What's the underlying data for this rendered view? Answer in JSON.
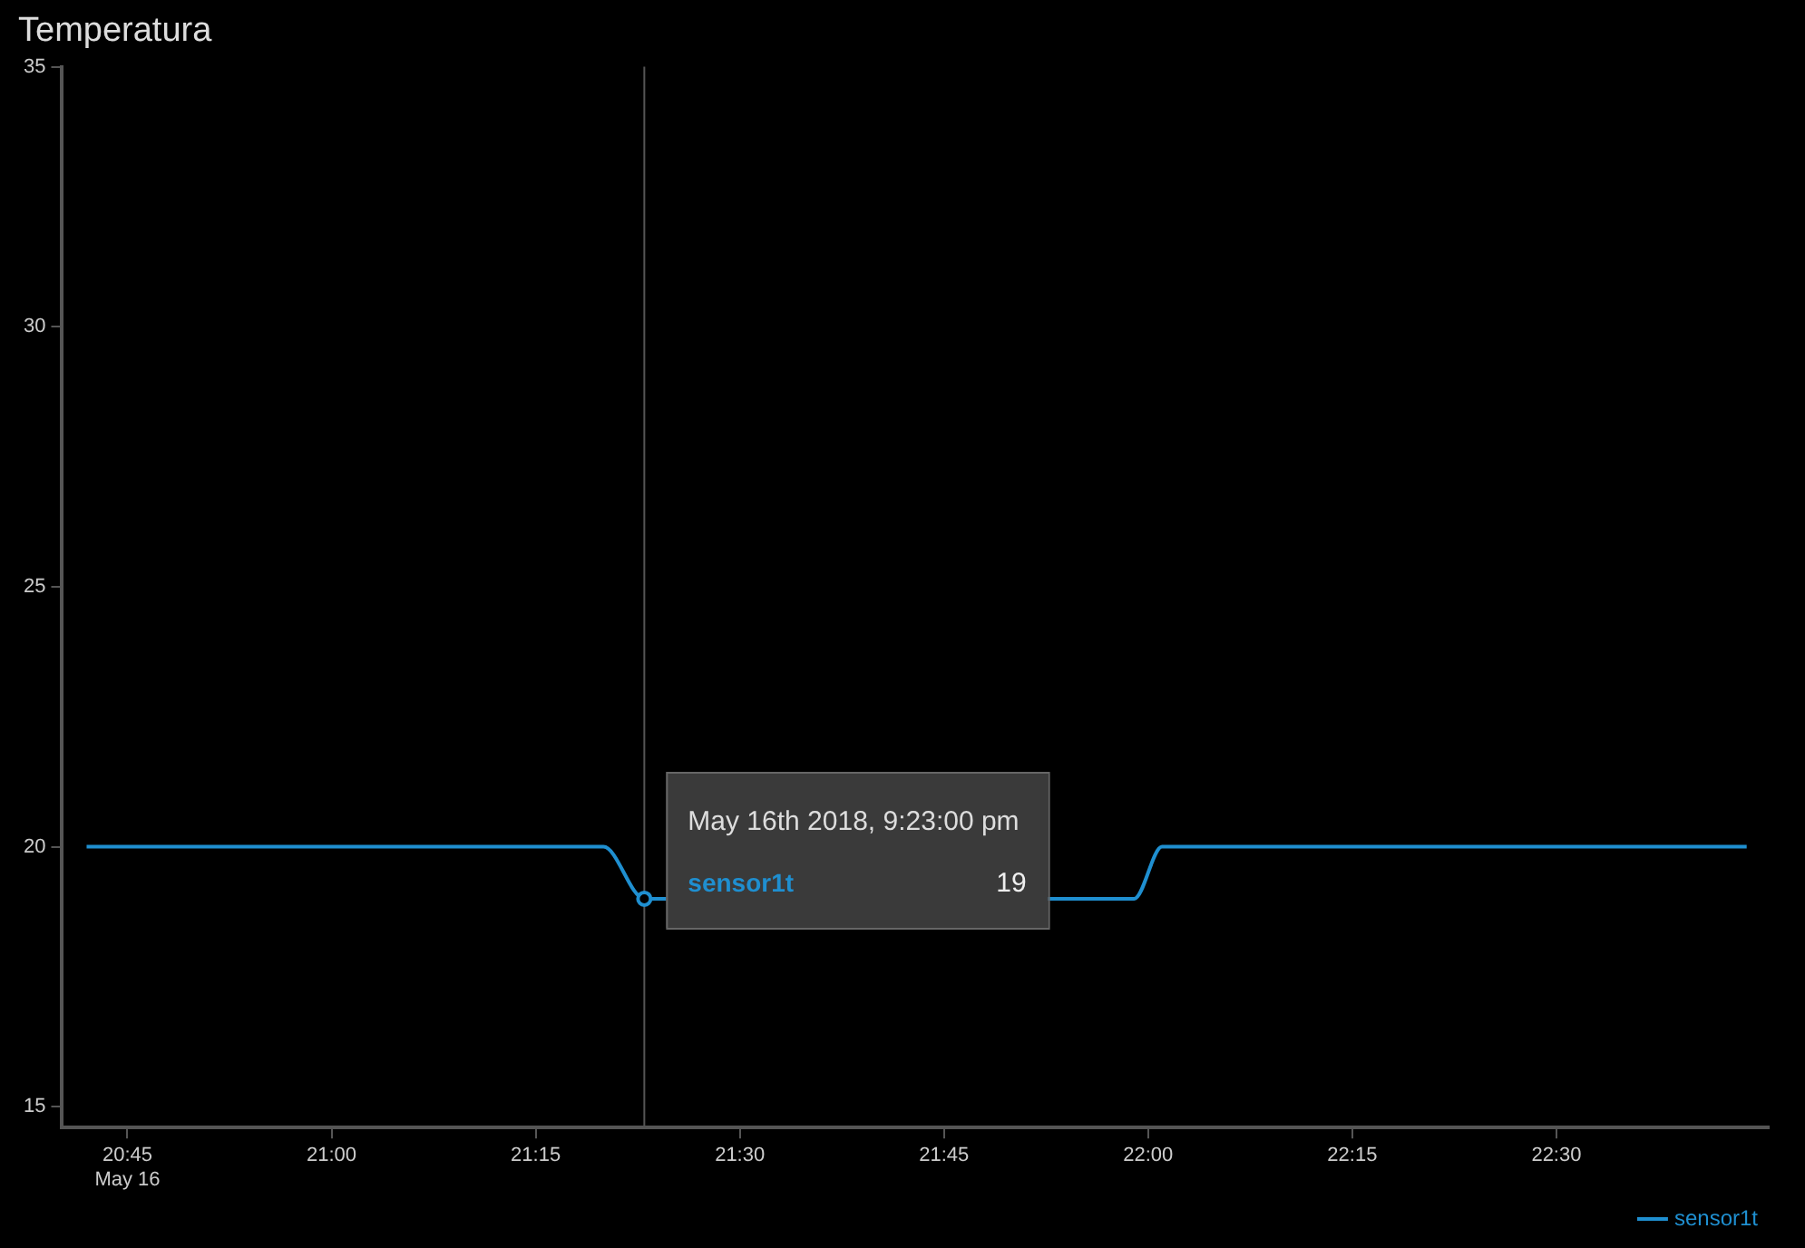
{
  "chart_data": {
    "type": "line",
    "title": "Temperatura",
    "x": [
      20.7,
      21.333,
      21.383,
      21.983,
      22.017,
      22.733
    ],
    "series": [
      {
        "name": "sensor1t",
        "color": "#1f8fd0",
        "values": [
          20,
          20,
          19,
          19,
          20,
          20
        ]
      }
    ],
    "xlim": [
      20.67,
      22.76
    ],
    "xticks": [
      {
        "value": 20.75,
        "label": "20:45\nMay 16"
      },
      {
        "value": 21,
        "label": "21:00"
      },
      {
        "value": 21.25,
        "label": "21:15"
      },
      {
        "value": 21.5,
        "label": "21:30"
      },
      {
        "value": 21.75,
        "label": "21:45"
      },
      {
        "value": 22,
        "label": "22:00"
      },
      {
        "value": 22.25,
        "label": "22:15"
      },
      {
        "value": 22.5,
        "label": "22:30"
      }
    ],
    "ylim": [
      14.6,
      35
    ],
    "yticks": [
      15,
      20,
      25,
      30,
      35
    ],
    "grid": false,
    "legend": "bottom right",
    "marker": "none",
    "line_style": "solid",
    "ref_lines": [
      {
        "axis": "x",
        "value": 21.383,
        "color": "#555555"
      }
    ],
    "annotations": [
      {
        "text": "May 16th 2018, 9:23:00 pm",
        "x": 21.383,
        "y": 19
      },
      "19"
    ]
  }
}
